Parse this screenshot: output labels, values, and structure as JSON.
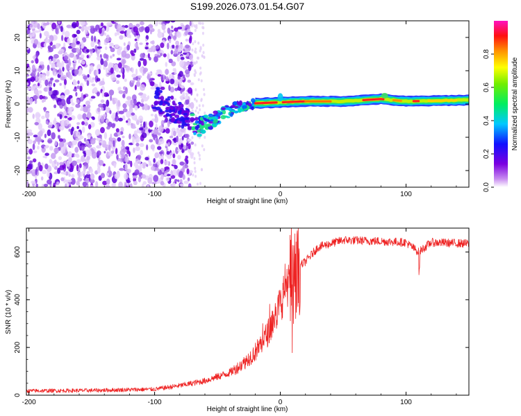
{
  "figure_title": "S199.2026.073.01.54.G07",
  "chart_data": [
    {
      "type": "heatmap",
      "title": "S199.2026.073.01.54.G07",
      "xlabel": "Height of straight line (km)",
      "ylabel": "Frequency (Hz)",
      "xlim": [
        -202,
        150
      ],
      "ylim": [
        -25,
        25
      ],
      "x_ticks": [
        -200,
        -100,
        0,
        100
      ],
      "x_tick_labels": [
        "-200",
        "-100",
        "0",
        "100"
      ],
      "y_ticks": [
        -20,
        -10,
        0,
        10,
        20
      ],
      "y_tick_labels": [
        "-20",
        "-10",
        "0",
        "10",
        "20"
      ],
      "colorbar": {
        "label": "Normalized spectral amplitude",
        "range": [
          0,
          1
        ],
        "ticks": [
          0.0,
          0.2,
          0.4,
          0.6,
          0.8
        ],
        "tick_labels": [
          "0.0",
          "0.2",
          "0.4",
          "0.6",
          "0.8"
        ],
        "colormap": "rainbow (violet-blue-cyan-green-yellow-red-magenta)"
      },
      "features": [
        {
          "name": "diffuse noise",
          "x_range": [
            -202,
            -70
          ],
          "freq_range": [
            -25,
            25
          ],
          "amplitude": 0.05
        },
        {
          "name": "noise edge",
          "x_range": [
            -70,
            -60
          ],
          "freq_range": [
            -25,
            25
          ],
          "amplitude": 0.02
        },
        {
          "name": "converging track",
          "points": [
            [
              -100,
              2
            ],
            [
              -80,
              -3
            ],
            [
              -65,
              -7
            ],
            [
              -50,
              -4
            ],
            [
              -35,
              -1
            ],
            [
              -20,
              0
            ]
          ],
          "amplitude": 0.3
        },
        {
          "name": "signal tone",
          "points": [
            [
              -20,
              0.2
            ],
            [
              0,
              0.5
            ],
            [
              20,
              0.8
            ],
            [
              50,
              0.8
            ],
            [
              80,
              1.5
            ],
            [
              100,
              0.8
            ],
            [
              150,
              1.2
            ]
          ],
          "amplitude": 0.95
        }
      ]
    },
    {
      "type": "line",
      "xlabel": "Height of straight line (km)",
      "ylabel": "SNR (10 * v/v)",
      "xlim": [
        -202,
        150
      ],
      "ylim": [
        0,
        700
      ],
      "x_ticks": [
        -200,
        -100,
        0,
        100
      ],
      "x_tick_labels": [
        "-200",
        "-100",
        "0",
        "100"
      ],
      "y_ticks": [
        0,
        200,
        400,
        600
      ],
      "y_tick_labels": [
        "0",
        "200",
        "400",
        "600"
      ],
      "series": [
        {
          "name": "SNR",
          "color": "#ee2222",
          "x": [
            -202,
            -150,
            -100,
            -80,
            -60,
            -40,
            -30,
            -20,
            -10,
            0,
            5,
            10,
            15,
            20,
            30,
            50,
            80,
            100,
            110,
            120,
            150
          ],
          "values": [
            18,
            20,
            25,
            40,
            60,
            95,
            130,
            180,
            260,
            380,
            480,
            450,
            540,
            560,
            620,
            650,
            645,
            640,
            600,
            640,
            635
          ]
        }
      ]
    }
  ]
}
